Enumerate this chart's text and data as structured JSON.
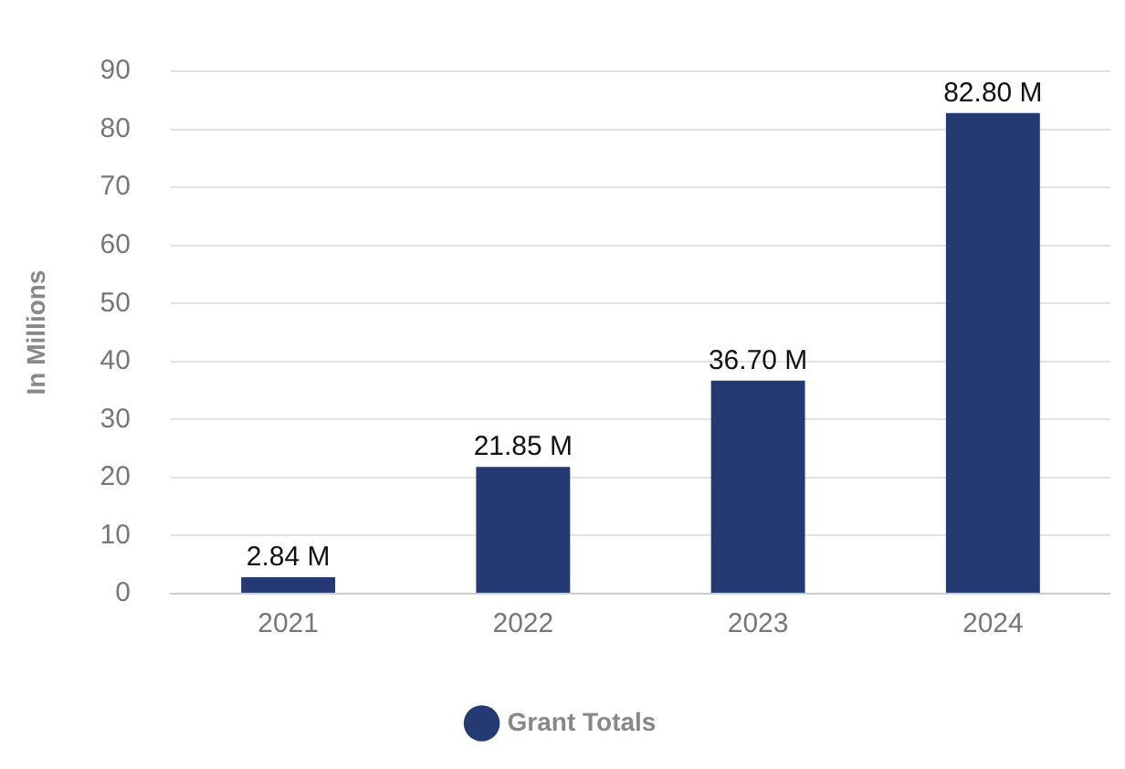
{
  "chart_data": {
    "type": "bar",
    "ylabel": "In Millions",
    "categories": [
      "2021",
      "2022",
      "2023",
      "2024"
    ],
    "series": [
      {
        "name": "Grant Totals",
        "color": "#253a73",
        "values": [
          2.84,
          21.85,
          36.7,
          82.8
        ],
        "value_labels": [
          "2.84 M",
          "21.85 M",
          "36.70 M",
          "82.80 M"
        ]
      }
    ],
    "ylim": [
      0,
      90
    ],
    "yticks": [
      0,
      10,
      20,
      30,
      40,
      50,
      60,
      70,
      80,
      90
    ],
    "grid": "y",
    "legend": "bottom"
  }
}
